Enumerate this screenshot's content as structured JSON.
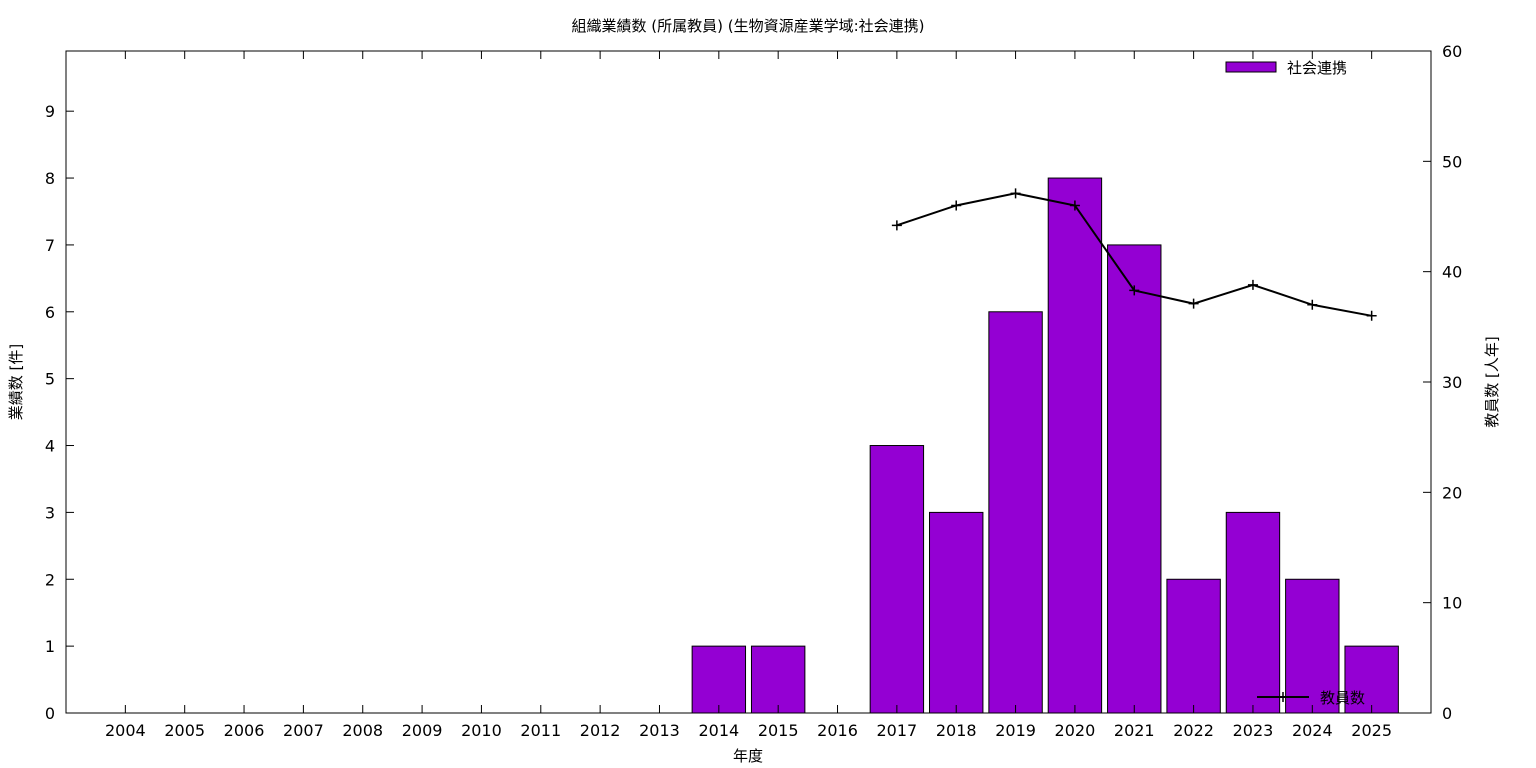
{
  "chart_data": {
    "type": "bar",
    "title": "組織業績数 (所属教員) (生物資源産業学域:社会連携)",
    "xlabel": "年度",
    "ylabel": "業績数 [件]",
    "y2label": "教員数 [人年]",
    "categories": [
      "2004",
      "2005",
      "2006",
      "2007",
      "2008",
      "2009",
      "2010",
      "2011",
      "2012",
      "2013",
      "2014",
      "2015",
      "2016",
      "2017",
      "2018",
      "2019",
      "2020",
      "2021",
      "2022",
      "2023",
      "2024",
      "2025"
    ],
    "ylim": [
      0,
      9.9
    ],
    "y2lim": [
      0,
      60
    ],
    "yticks": [
      0,
      1,
      2,
      3,
      4,
      5,
      6,
      7,
      8,
      9
    ],
    "y2ticks": [
      0,
      10,
      20,
      30,
      40,
      50,
      60
    ],
    "grid": false,
    "legend_position": "top-right (bars), bottom-right (line)",
    "series": [
      {
        "name": "社会連携",
        "type": "bar",
        "axis": "left",
        "color": "#9400d3",
        "values": [
          0,
          0,
          0,
          0,
          0,
          0,
          0,
          0,
          0,
          0,
          1,
          1,
          0,
          4,
          3,
          6,
          8,
          7,
          2,
          3,
          2,
          1
        ]
      },
      {
        "name": "教員数",
        "type": "line",
        "axis": "right",
        "color": "#000000",
        "values": [
          null,
          null,
          null,
          null,
          null,
          null,
          null,
          null,
          null,
          null,
          null,
          null,
          null,
          44.2,
          46.0,
          47.1,
          46.0,
          38.3,
          37.1,
          38.8,
          37.0,
          36.0
        ]
      }
    ]
  }
}
